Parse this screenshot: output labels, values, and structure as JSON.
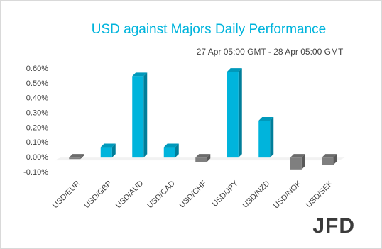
{
  "chart_data": {
    "type": "bar3d",
    "title": "USD against Majors Daily Performance",
    "subtitle": "27 Apr 05:00 GMT -  28 Apr  05:00 GMT",
    "logo": "JFD",
    "categories": [
      "USD/EUR",
      "USD/GBP",
      "USD/AUD",
      "USD/CAD",
      "USD/CHF",
      "USD/JPY",
      "USD/NZD",
      "USD/NOK",
      "USD/SEK"
    ],
    "values": [
      -0.01,
      0.07,
      0.55,
      0.07,
      -0.03,
      0.58,
      0.25,
      -0.08,
      -0.05
    ],
    "positive_color": "#00b4dc",
    "negative_color": "#7f7f7f",
    "ylim": [
      -0.1,
      0.6
    ],
    "yticks": [
      {
        "value": -0.1,
        "label": "-0.10%"
      },
      {
        "value": 0,
        "label": "0.00%"
      },
      {
        "value": 0.1,
        "label": "0.10%"
      },
      {
        "value": 0.2,
        "label": "0.20%"
      },
      {
        "value": 0.3,
        "label": "0.30%"
      },
      {
        "value": 0.4,
        "label": "0.40%"
      },
      {
        "value": 0.5,
        "label": "0.50%"
      },
      {
        "value": 0.6,
        "label": "0.60%"
      }
    ]
  }
}
